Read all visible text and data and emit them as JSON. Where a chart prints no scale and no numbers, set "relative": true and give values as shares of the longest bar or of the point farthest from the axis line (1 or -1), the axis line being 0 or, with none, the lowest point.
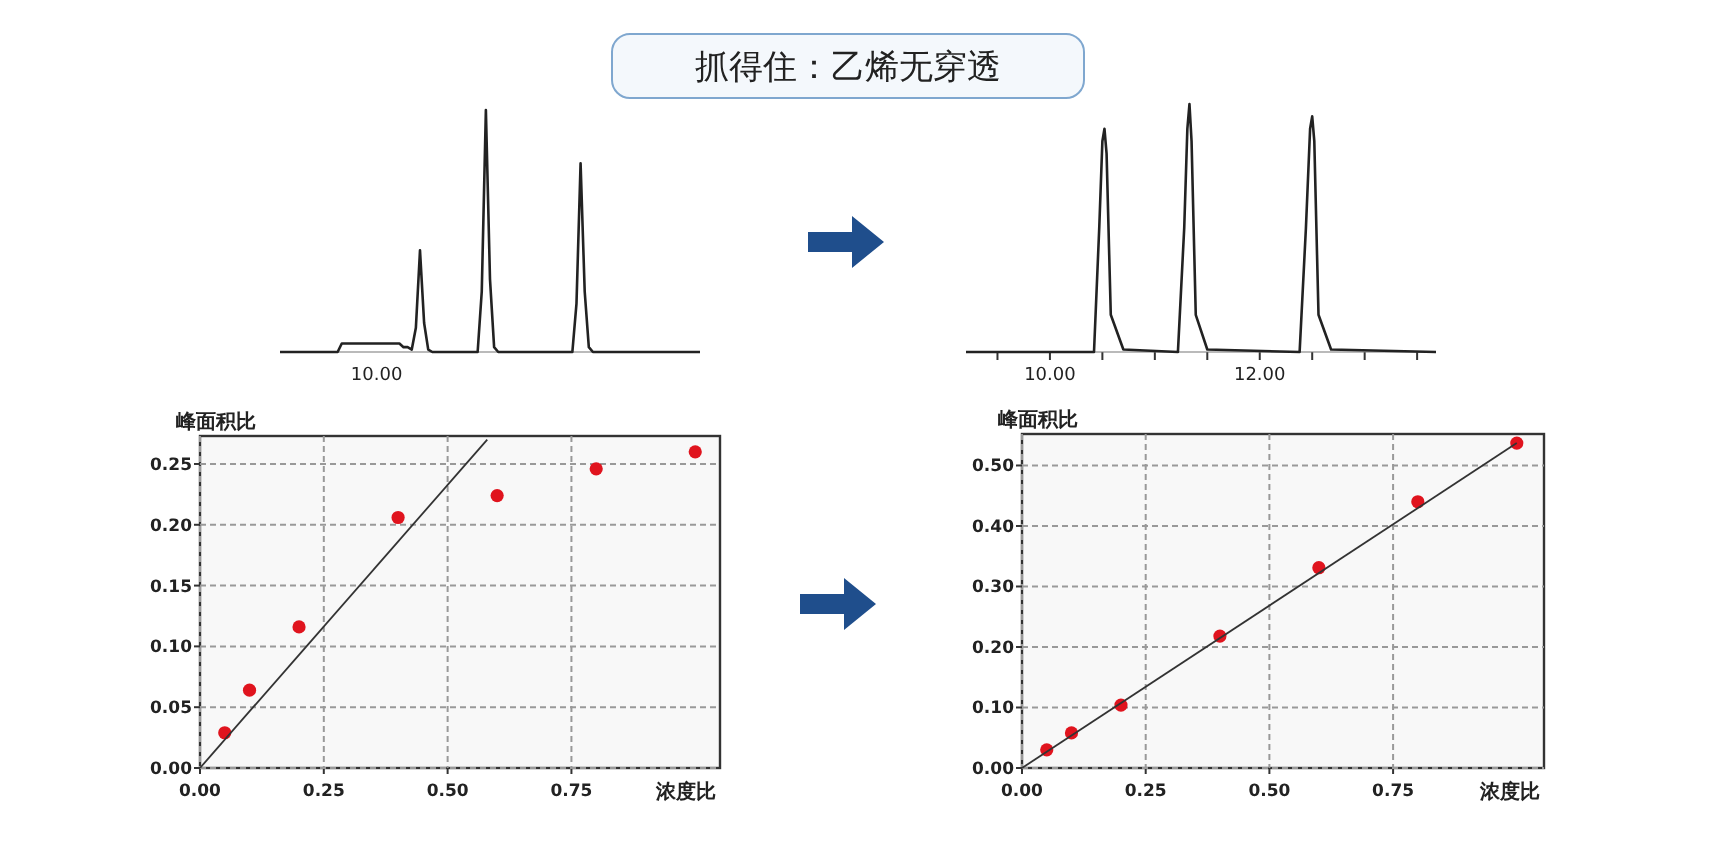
{
  "chart_data": [
    {
      "type": "line",
      "title": "抓得住：乙烯无穿透",
      "relative": true,
      "annotations": [
        "10.00"
      ],
      "categories": [
        null,
        null,
        null,
        null,
        null,
        null,
        null,
        null,
        null,
        null,
        null,
        null,
        null,
        null,
        null,
        null,
        null,
        null,
        null,
        null,
        null,
        null,
        null,
        null,
        null,
        null,
        null,
        null,
        null,
        null,
        null,
        null,
        null,
        null,
        null,
        null,
        null,
        null,
        null,
        null,
        null,
        null,
        null,
        null,
        null,
        null,
        null,
        null,
        null,
        null,
        null,
        null,
        null,
        null,
        null,
        null,
        null,
        null,
        null,
        null,
        null,
        null,
        null,
        null,
        null,
        null,
        null,
        null,
        null,
        null,
        null,
        null,
        null,
        null,
        null,
        null,
        null,
        null,
        null,
        null,
        null,
        null,
        null,
        null,
        null,
        null,
        null,
        null,
        null,
        null,
        null,
        null,
        null,
        null,
        null,
        null,
        null,
        null,
        null,
        null,
        null,
        null,
        null
      ],
      "series": [
        {
          "color": "#222222",
          "values": [
            0,
            0,
            0,
            0,
            0,
            0,
            0,
            0,
            0,
            0,
            0,
            0,
            0,
            0,
            0,
            0.035,
            0.035,
            0.035,
            0.035,
            0.035,
            0.035,
            0.035,
            0.035,
            0.035,
            0.035,
            0.035,
            0.035,
            0.035,
            0.035,
            0.035,
            0.02,
            0.02,
            0.01,
            0.1,
            0.42,
            0.12,
            0.01,
            0,
            0,
            0,
            0,
            0,
            0,
            0,
            0,
            0,
            0,
            0,
            0,
            0.25,
            1,
            0.3,
            0.02,
            0,
            0,
            0,
            0,
            0,
            0,
            0,
            0,
            0,
            0,
            0,
            0,
            0,
            0,
            0,
            0,
            0,
            0,
            0,
            0.2,
            0.78,
            0.25,
            0.02,
            0,
            0,
            0,
            0,
            0,
            0,
            0,
            0,
            0,
            0,
            0,
            0,
            0,
            0,
            0,
            0,
            0,
            0,
            0,
            0,
            0,
            0,
            0,
            0,
            0,
            0,
            0
          ]
        }
      ]
    },
    {
      "type": "line",
      "relative": true,
      "xlim": [
        9.2,
        13.68
      ],
      "xticks": [
        {
          "value": 9.5,
          "label": null
        },
        {
          "value": 10,
          "label": "10.00"
        },
        {
          "value": 10.5,
          "label": null
        },
        {
          "value": 11,
          "label": null
        },
        {
          "value": 11.5,
          "label": null
        },
        {
          "value": 12,
          "label": "12.00"
        },
        {
          "value": 12.5,
          "label": null
        },
        {
          "value": 13,
          "label": null
        },
        {
          "value": 13.5,
          "label": null
        }
      ],
      "series": [
        {
          "color": "#222222",
          "x": [
            9.2,
            10.42,
            10.47,
            10.5,
            10.52,
            10.54,
            10.58,
            10.7,
            11.22,
            11.28,
            11.31,
            11.33,
            11.35,
            11.39,
            11.5,
            12.38,
            12.44,
            12.48,
            12.5,
            12.52,
            12.56,
            12.68,
            13.68
          ],
          "values": [
            0,
            0,
            0.5,
            0.85,
            0.9,
            0.8,
            0.15,
            0.01,
            0,
            0.5,
            0.9,
            1,
            0.85,
            0.15,
            0.01,
            0,
            0.5,
            0.9,
            0.95,
            0.85,
            0.15,
            0.01,
            0
          ]
        }
      ]
    },
    {
      "type": "scatter",
      "xlabel": "浓度比",
      "ylabel": "峰面积比",
      "xlim": [
        0,
        1.05
      ],
      "ylim": [
        0,
        0.273
      ],
      "grid": true,
      "xticks": [
        {
          "value": 0,
          "label": "0.00"
        },
        {
          "value": 0.25,
          "label": "0.25"
        },
        {
          "value": 0.5,
          "label": "0.50"
        },
        {
          "value": 0.75,
          "label": "0.75"
        }
      ],
      "yticks": [
        {
          "value": 0,
          "label": "0.00"
        },
        {
          "value": 0.05,
          "label": "0.05"
        },
        {
          "value": 0.1,
          "label": "0.10"
        },
        {
          "value": 0.15,
          "label": "0.15"
        },
        {
          "value": 0.2,
          "label": "0.20"
        },
        {
          "value": 0.25,
          "label": "0.25"
        }
      ],
      "series": [
        {
          "color": "#e0141e",
          "marker": "circle",
          "x": [
            0.05,
            0.1,
            0.2,
            0.4,
            0.6,
            0.8,
            1.0
          ],
          "values": [
            0.029,
            0.064,
            0.116,
            0.206,
            0.224,
            0.246,
            0.26
          ]
        },
        {
          "type": "line",
          "color": "#333333",
          "x": [
            0,
            0.58
          ],
          "values": [
            0,
            0.27
          ]
        }
      ]
    },
    {
      "type": "scatter",
      "xlabel": "浓度比",
      "ylabel": "峰面积比",
      "xlim": [
        0,
        1.055
      ],
      "ylim": [
        0,
        0.552
      ],
      "grid": true,
      "xticks": [
        {
          "value": 0,
          "label": "0.00"
        },
        {
          "value": 0.25,
          "label": "0.25"
        },
        {
          "value": 0.5,
          "label": "0.50"
        },
        {
          "value": 0.75,
          "label": "0.75"
        }
      ],
      "yticks": [
        {
          "value": 0,
          "label": "0.00"
        },
        {
          "value": 0.1,
          "label": "0.10"
        },
        {
          "value": 0.2,
          "label": "0.20"
        },
        {
          "value": 0.3,
          "label": "0.30"
        },
        {
          "value": 0.4,
          "label": "0.40"
        },
        {
          "value": 0.5,
          "label": "0.50"
        }
      ],
      "series": [
        {
          "color": "#e0141e",
          "marker": "circle",
          "x": [
            0.05,
            0.1,
            0.2,
            0.4,
            0.6,
            0.8,
            1.0
          ],
          "values": [
            0.03,
            0.058,
            0.104,
            0.218,
            0.331,
            0.44,
            0.537
          ]
        },
        {
          "type": "line",
          "color": "#333333",
          "x": [
            0,
            1.0
          ],
          "values": [
            0,
            0.537
          ]
        }
      ]
    }
  ]
}
